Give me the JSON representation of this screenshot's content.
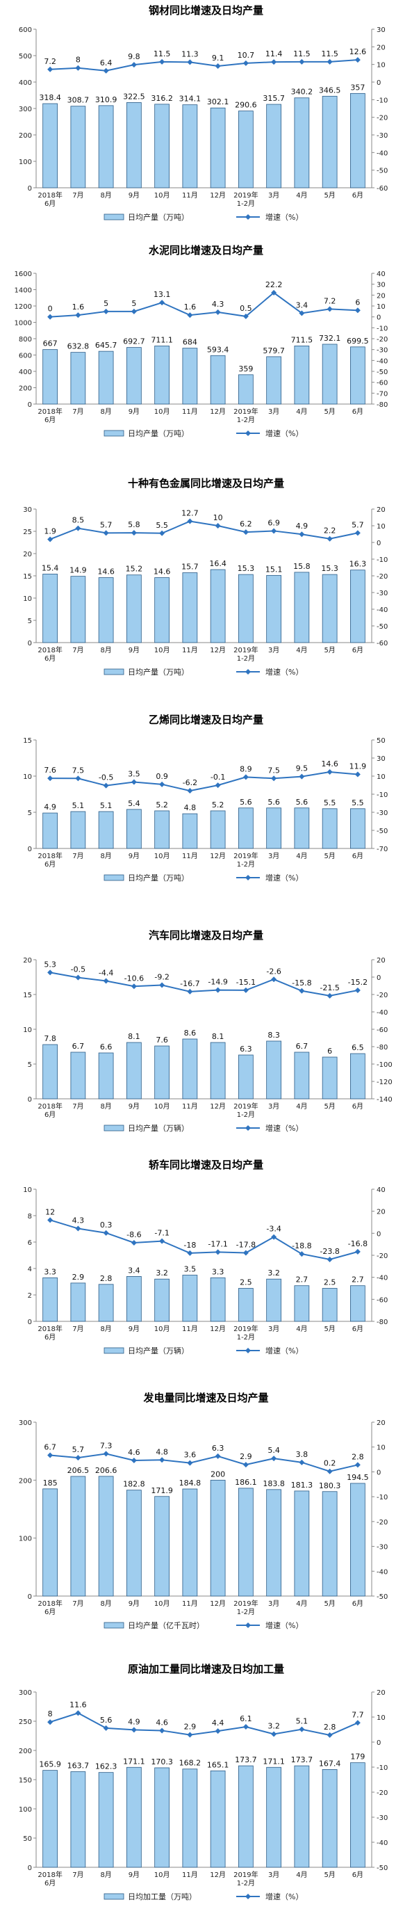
{
  "chart_data": [
    {
      "type": "bar",
      "title": "钢材同比增速及日均产量",
      "categories": [
        "2018年6月",
        "7月",
        "8月",
        "9月",
        "10月",
        "11月",
        "12月",
        "2019年1-2月",
        "3月",
        "4月",
        "5月",
        "6月"
      ],
      "series": [
        {
          "name": "日均产量（万吨）",
          "type": "bar",
          "axis": "left",
          "values": [
            318.4,
            308.7,
            310.9,
            322.5,
            316.2,
            314.1,
            302.1,
            290.6,
            315.7,
            340.2,
            346.5,
            357.0
          ]
        },
        {
          "name": "增速（%）",
          "type": "line",
          "axis": "right",
          "values": [
            7.2,
            8.0,
            6.4,
            9.8,
            11.5,
            11.3,
            9.1,
            10.7,
            11.4,
            11.5,
            11.5,
            12.6
          ]
        }
      ],
      "ylim": [
        0,
        600
      ],
      "yticks": [
        0,
        100,
        200,
        300,
        400,
        500,
        600
      ],
      "y2lim": [
        -60,
        30
      ],
      "y2ticks": [
        -60,
        -50,
        -40,
        -30,
        -20,
        -10,
        0,
        10,
        20,
        30
      ]
    },
    {
      "type": "bar",
      "title": "水泥同比增速及日均产量",
      "categories": [
        "2018年6月",
        "7月",
        "8月",
        "9月",
        "10月",
        "11月",
        "12月",
        "2019年1-2月",
        "3月",
        "4月",
        "5月",
        "6月"
      ],
      "series": [
        {
          "name": "日均产量（万吨）",
          "type": "bar",
          "axis": "left",
          "values": [
            667.0,
            632.8,
            645.7,
            692.7,
            711.1,
            684.0,
            593.4,
            359.0,
            579.7,
            711.5,
            732.1,
            699.5
          ]
        },
        {
          "name": "增速（%）",
          "type": "line",
          "axis": "right",
          "values": [
            0.0,
            1.6,
            5.0,
            5.0,
            13.1,
            1.6,
            4.3,
            0.5,
            22.2,
            3.4,
            7.2,
            6.0
          ]
        }
      ],
      "ylim": [
        0,
        1600
      ],
      "yticks": [
        0,
        200,
        400,
        600,
        800,
        1000,
        1200,
        1400,
        1600
      ],
      "y2lim": [
        -80,
        40
      ],
      "y2ticks": [
        -80,
        -70,
        -60,
        -50,
        -40,
        -30,
        -20,
        -10,
        0,
        10,
        20,
        30,
        40
      ]
    },
    {
      "type": "bar",
      "title": "十种有色金属同比增速及日均产量",
      "categories": [
        "2018年6月",
        "7月",
        "8月",
        "9月",
        "10月",
        "11月",
        "12月",
        "2019年1-2月",
        "3月",
        "4月",
        "5月",
        "6月"
      ],
      "series": [
        {
          "name": "日均产量（万吨）",
          "type": "bar",
          "axis": "left",
          "values": [
            15.4,
            14.9,
            14.6,
            15.2,
            14.6,
            15.7,
            16.4,
            15.3,
            15.1,
            15.8,
            15.3,
            16.3
          ]
        },
        {
          "name": "增速（%）",
          "type": "line",
          "axis": "right",
          "values": [
            1.9,
            8.5,
            5.7,
            5.8,
            5.5,
            12.7,
            10.0,
            6.2,
            6.9,
            4.9,
            2.2,
            5.7
          ]
        }
      ],
      "ylim": [
        0,
        30
      ],
      "yticks": [
        0,
        5,
        10,
        15,
        20,
        25,
        30
      ],
      "y2lim": [
        -60,
        20
      ],
      "y2ticks": [
        -60,
        -50,
        -40,
        -30,
        -20,
        -10,
        0,
        10,
        20
      ]
    },
    {
      "type": "bar",
      "title": "乙烯同比增速及日均产量",
      "categories": [
        "2018年6月",
        "7月",
        "8月",
        "9月",
        "10月",
        "11月",
        "12月",
        "2019年1-2月",
        "3月",
        "4月",
        "5月",
        "6月"
      ],
      "series": [
        {
          "name": "日均产量（万吨）",
          "type": "bar",
          "axis": "left",
          "values": [
            4.9,
            5.1,
            5.1,
            5.4,
            5.2,
            4.8,
            5.2,
            5.6,
            5.6,
            5.6,
            5.5,
            5.5
          ]
        },
        {
          "name": "增速（%）",
          "type": "line",
          "axis": "right",
          "values": [
            7.6,
            7.5,
            -0.5,
            3.5,
            0.9,
            -6.2,
            -0.1,
            8.9,
            7.5,
            9.5,
            14.6,
            11.9
          ]
        }
      ],
      "ylim": [
        0,
        15
      ],
      "yticks": [
        0,
        5,
        10,
        15
      ],
      "y2lim": [
        -70,
        50
      ],
      "y2ticks": [
        -70,
        -50,
        -30,
        -10,
        10,
        30,
        50
      ]
    },
    {
      "type": "bar",
      "title": "汽车同比增速及日均产量",
      "categories": [
        "2018年6月",
        "7月",
        "8月",
        "9月",
        "10月",
        "11月",
        "12月",
        "2019年1-2月",
        "3月",
        "4月",
        "5月",
        "6月"
      ],
      "series": [
        {
          "name": "日均产量（万辆）",
          "type": "bar",
          "axis": "left",
          "values": [
            7.8,
            6.7,
            6.6,
            8.1,
            7.6,
            8.6,
            8.1,
            6.3,
            8.3,
            6.7,
            6.0,
            6.5
          ]
        },
        {
          "name": "增速（%）",
          "type": "line",
          "axis": "right",
          "values": [
            5.3,
            -0.5,
            -4.4,
            -10.6,
            -9.2,
            -16.7,
            -14.9,
            -15.1,
            -2.6,
            -15.8,
            -21.5,
            -15.2
          ]
        }
      ],
      "ylim": [
        0,
        20
      ],
      "yticks": [
        0,
        5,
        10,
        15,
        20
      ],
      "y2lim": [
        -140,
        20
      ],
      "y2ticks": [
        -140,
        -120,
        -100,
        -80,
        -60,
        -40,
        -20,
        0,
        20
      ]
    },
    {
      "type": "bar",
      "title": "轿车同比增速及日均产量",
      "categories": [
        "2018年6月",
        "7月",
        "8月",
        "9月",
        "10月",
        "11月",
        "12月",
        "2019年1-2月",
        "3月",
        "4月",
        "5月",
        "6月"
      ],
      "series": [
        {
          "name": "日均产量（万辆）",
          "type": "bar",
          "axis": "left",
          "values": [
            3.3,
            2.9,
            2.8,
            3.4,
            3.2,
            3.5,
            3.3,
            2.5,
            3.2,
            2.7,
            2.5,
            2.7
          ]
        },
        {
          "name": "增速（%）",
          "type": "line",
          "axis": "right",
          "values": [
            12.0,
            4.3,
            0.3,
            -8.6,
            -7.1,
            -18.0,
            -17.1,
            -17.8,
            -3.4,
            -18.8,
            -23.8,
            -16.8
          ]
        }
      ],
      "ylim": [
        0,
        10
      ],
      "yticks": [
        0,
        2,
        4,
        6,
        8,
        10
      ],
      "y2lim": [
        -80,
        40
      ],
      "y2ticks": [
        -80,
        -60,
        -40,
        -20,
        0,
        20,
        40
      ]
    },
    {
      "type": "bar",
      "title": "发电量同比增速及日均产量",
      "categories": [
        "2018年6月",
        "7月",
        "8月",
        "9月",
        "10月",
        "11月",
        "12月",
        "2019年1-2月",
        "3月",
        "4月",
        "5月",
        "6月"
      ],
      "series": [
        {
          "name": "日均产量（亿千瓦时）",
          "type": "bar",
          "axis": "left",
          "values": [
            185.0,
            206.5,
            206.6,
            182.8,
            171.9,
            184.8,
            200.0,
            186.1,
            183.8,
            181.3,
            180.3,
            194.5
          ]
        },
        {
          "name": "增速（%）",
          "type": "line",
          "axis": "right",
          "values": [
            6.7,
            5.7,
            7.3,
            4.6,
            4.8,
            3.6,
            6.3,
            2.9,
            5.4,
            3.8,
            0.2,
            2.8
          ]
        }
      ],
      "ylim": [
        0,
        300
      ],
      "yticks": [
        0,
        100,
        200,
        300
      ],
      "y2lim": [
        -50,
        20
      ],
      "y2ticks": [
        -50,
        -40,
        -30,
        -20,
        -10,
        0,
        10,
        20
      ]
    },
    {
      "type": "bar",
      "title": "原油加工量同比增速及日均加工量",
      "categories": [
        "2018年6月",
        "7月",
        "8月",
        "9月",
        "10月",
        "11月",
        "12月",
        "2019年1-2月",
        "3月",
        "4月",
        "5月",
        "6月"
      ],
      "series": [
        {
          "name": "日均加工量（万吨）",
          "type": "bar",
          "axis": "left",
          "values": [
            165.9,
            163.7,
            162.3,
            171.1,
            170.3,
            168.2,
            165.1,
            173.7,
            171.1,
            173.7,
            167.4,
            179.0
          ]
        },
        {
          "name": "增速（%）",
          "type": "line",
          "axis": "right",
          "values": [
            8.0,
            11.6,
            5.6,
            4.9,
            4.6,
            2.9,
            4.4,
            6.1,
            3.2,
            5.1,
            2.8,
            7.7
          ]
        }
      ],
      "ylim": [
        0,
        300
      ],
      "yticks": [
        0,
        50,
        100,
        150,
        200,
        250,
        300
      ],
      "y2lim": [
        -50,
        20
      ],
      "y2ticks": [
        -50,
        -40,
        -30,
        -20,
        -10,
        0,
        10,
        20
      ]
    }
  ]
}
